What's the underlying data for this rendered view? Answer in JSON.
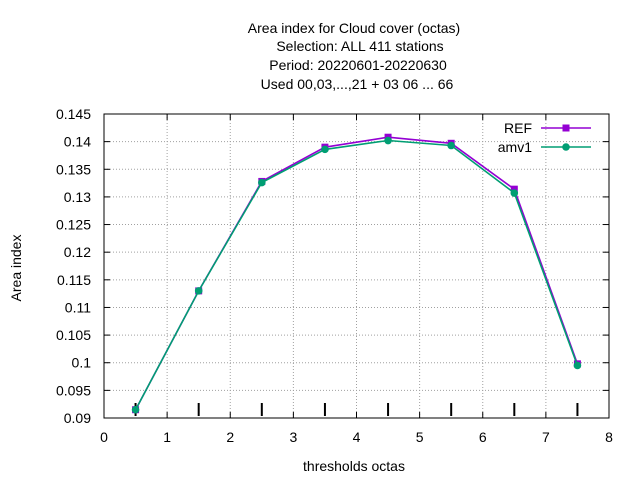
{
  "chart_data": {
    "type": "line",
    "title_lines": [
      "Area index  for Cloud cover (octas)",
      "Selection: ALL    411 stations",
      "Period: 20220601-20220630",
      "Used  00,03,...,21  + 03 06 ... 66"
    ],
    "xlabel": "thresholds octas",
    "ylabel": "Area index",
    "xlim": [
      0,
      8
    ],
    "ylim": [
      0.09,
      0.145
    ],
    "x_ticks": [
      0,
      1,
      2,
      3,
      4,
      5,
      6,
      7,
      8
    ],
    "y_ticks": [
      0.09,
      0.095,
      0.1,
      0.105,
      0.11,
      0.115,
      0.12,
      0.125,
      0.13,
      0.135,
      0.14,
      0.145
    ],
    "y_tick_labels": [
      "0.09",
      "0.095",
      "0.1",
      "0.105",
      "0.11",
      "0.115",
      "0.12",
      "0.125",
      "0.13",
      "0.135",
      "0.14",
      "0.145"
    ],
    "grid": true,
    "legend_position": "top-right",
    "x": [
      0.5,
      1.5,
      2.5,
      3.5,
      4.5,
      5.5,
      6.5,
      7.5
    ],
    "series": [
      {
        "name": "REF",
        "color": "#9400d3",
        "marker": "filled-square",
        "values": [
          0.0915,
          0.113,
          0.1328,
          0.139,
          0.1408,
          0.1397,
          0.1314,
          0.0998
        ]
      },
      {
        "name": "amv1",
        "color": "#009e73",
        "marker": "filled-circle",
        "values": [
          0.0915,
          0.113,
          0.1326,
          0.1386,
          0.1402,
          0.1393,
          0.1307,
          0.0995
        ]
      }
    ],
    "bottom_tick_marks_x": [
      0.5,
      1.5,
      2.5,
      3.5,
      4.5,
      5.5,
      6.5,
      7.5
    ]
  }
}
